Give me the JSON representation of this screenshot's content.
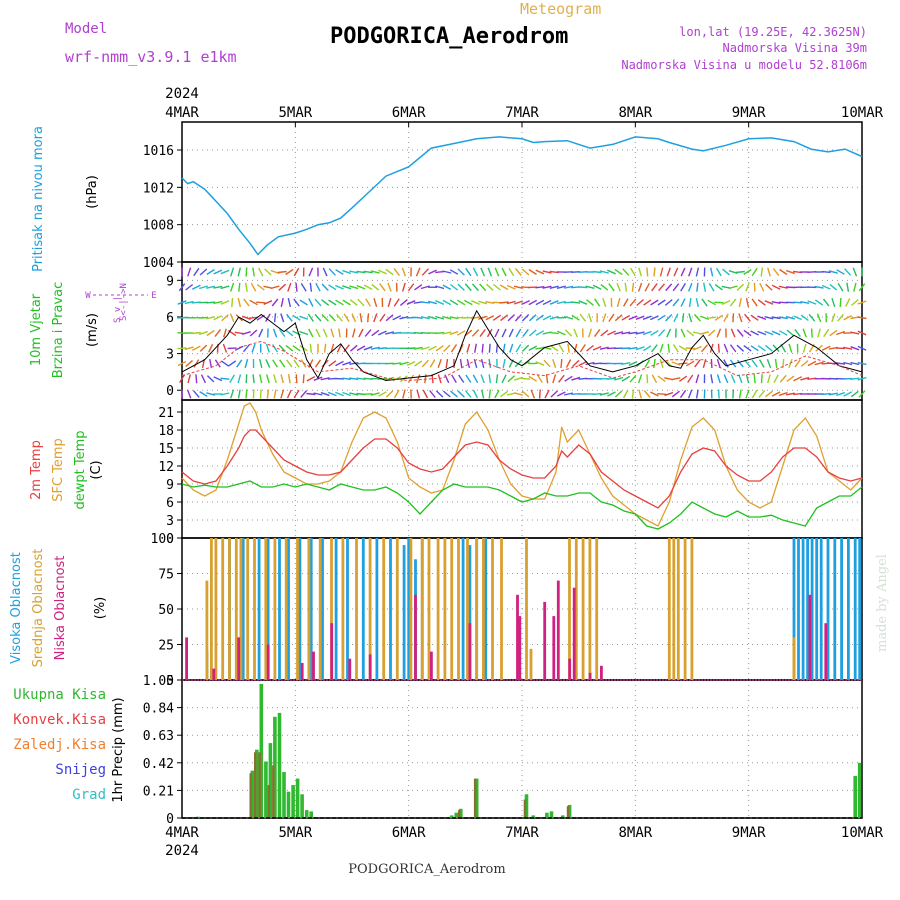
{
  "header": {
    "model_label": "Model",
    "model_name": "wrf-nmm_v3.9.1  e1km",
    "meteogram_label": "Meteogram",
    "station": "PODGORICA_Aerodrom",
    "lonlat": "lon,lat (19.25E, 42.3625N)",
    "altitude": "Nadmorska Visina 39m",
    "model_altitude": "Nadmorska Visina u modelu 52.8106m",
    "credit": "made by Angel",
    "footer_station": "PODGORICA_Aerodrom"
  },
  "colors": {
    "pressure": "#1ea0e0",
    "wind_title": "#20c020",
    "temp_2m": "#e84040",
    "temp_sfc": "#e0a030",
    "dewpoint": "#20c020",
    "cloud_high": "#1ea0e0",
    "cloud_mid": "#d8a030",
    "cloud_low": "#d02080",
    "precip_total": "#30b830",
    "precip_conv": "#e84040",
    "precip_frz": "#f08030",
    "precip_snow": "#4040e0",
    "precip_grad": "#30c0c0",
    "purple": "#b040d0"
  },
  "chart_data": [
    {
      "type": "line",
      "title": "",
      "ylabel_lines": [
        "Pritisak na nivou mora",
        "(hPa)"
      ],
      "x_year": "2024",
      "x_ticks": [
        "4MAR",
        "5MAR",
        "6MAR",
        "7MAR",
        "8MAR",
        "9MAR",
        "10MAR"
      ],
      "xlim": [
        0,
        6
      ],
      "ylim": [
        1004,
        1019
      ],
      "y_ticks": [
        1004,
        1008,
        1012,
        1016
      ],
      "series": [
        {
          "x": [
            0,
            0.05,
            0.1,
            0.2,
            0.3,
            0.4,
            0.5,
            0.6,
            0.67,
            0.75,
            0.85,
            1.0,
            1.1,
            1.2,
            1.3,
            1.4,
            1.5,
            1.65,
            1.8,
            2.0,
            2.1,
            2.2,
            2.4,
            2.6,
            2.8,
            3.0,
            3.1,
            3.2,
            3.4,
            3.6,
            3.8,
            4.0,
            4.2,
            4.3,
            4.5,
            4.6,
            4.8,
            5.0,
            5.2,
            5.4,
            5.55,
            5.7,
            5.85,
            6.0
          ],
          "values": [
            1013,
            1012.4,
            1012.6,
            1011.8,
            1010.5,
            1009.2,
            1007.5,
            1006,
            1004.8,
            1005.8,
            1006.7,
            1007.1,
            1007.5,
            1008,
            1008.2,
            1008.7,
            1009.8,
            1011.5,
            1013.2,
            1014.2,
            1015.2,
            1016.2,
            1016.7,
            1017.2,
            1017.4,
            1017.2,
            1016.8,
            1016.9,
            1017,
            1016.2,
            1016.6,
            1017.4,
            1017.2,
            1016.8,
            1016.1,
            1015.9,
            1016.5,
            1017.2,
            1017.3,
            1016.9,
            1016.1,
            1015.8,
            1016.1,
            1015.3
          ]
        }
      ]
    },
    {
      "type": "line",
      "title": "",
      "ylabel_lines": [
        "10m Vjetar",
        "Brzina i Pravac",
        "(m/s)"
      ],
      "compass_lines": [
        "N",
        "^",
        "|",
        "W <--|--> E",
        "|",
        "v",
        "S"
      ],
      "xlim": [
        0,
        6
      ],
      "ylim": [
        -0.8,
        10.5
      ],
      "y_ticks": [
        0,
        3,
        6,
        9
      ],
      "series": [
        {
          "name": "",
          "x": [
            0,
            0.2,
            0.4,
            0.5,
            0.6,
            0.7,
            0.8,
            0.9,
            1.0,
            1.1,
            1.2,
            1.3,
            1.4,
            1.5,
            1.6,
            1.8,
            2.0,
            2.2,
            2.4,
            2.5,
            2.6,
            2.7,
            2.8,
            2.9,
            3.0,
            3.2,
            3.4,
            3.5,
            3.6,
            3.8,
            4.0,
            4.2,
            4.3,
            4.4,
            4.5,
            4.6,
            4.7,
            4.8,
            5.0,
            5.2,
            5.4,
            5.5,
            5.6,
            5.8,
            6.0
          ],
          "values": [
            1.5,
            2.5,
            4.5,
            6,
            5.5,
            6.2,
            5.5,
            4.8,
            5.5,
            2.5,
            1.0,
            3.0,
            3.8,
            2.5,
            1.5,
            0.8,
            1.0,
            1.2,
            2.0,
            4.5,
            6.5,
            5.0,
            3.5,
            2.5,
            2.0,
            3.5,
            4.0,
            3.0,
            2.0,
            1.5,
            2.0,
            3.0,
            2.0,
            1.8,
            3.5,
            4.5,
            3.0,
            2.0,
            2.5,
            3.0,
            4.5,
            4.0,
            3.5,
            2.0,
            1.5
          ]
        },
        {
          "name": "",
          "x": [
            0,
            0.3,
            0.5,
            0.7,
            0.9,
            1.2,
            1.5,
            1.8,
            2.0,
            2.3,
            2.6,
            2.9,
            3.2,
            3.5,
            3.8,
            4.0,
            4.3,
            4.6,
            4.9,
            5.2,
            5.5,
            5.8,
            6.0
          ],
          "values": [
            1.2,
            2.0,
            3.5,
            4.0,
            3.2,
            1.5,
            1.8,
            1.0,
            0.8,
            1.0,
            2.5,
            1.5,
            1.2,
            2.0,
            1.0,
            1.5,
            2.5,
            2.5,
            1.2,
            1.5,
            2.8,
            2.0,
            1.2
          ]
        }
      ]
    },
    {
      "type": "line",
      "title": "",
      "ylabel_lines": [
        "2m Temp",
        "SFC Temp",
        "dewpt Temp",
        "(C)"
      ],
      "xlim": [
        0,
        6
      ],
      "ylim": [
        0,
        23
      ],
      "y_ticks": [
        0,
        3,
        6,
        9,
        12,
        15,
        18,
        21
      ],
      "series": [
        {
          "name": "2m Temp",
          "x": [
            0,
            0.1,
            0.2,
            0.3,
            0.4,
            0.5,
            0.55,
            0.6,
            0.65,
            0.7,
            0.8,
            0.9,
            1.0,
            1.1,
            1.2,
            1.3,
            1.4,
            1.5,
            1.6,
            1.7,
            1.8,
            1.9,
            2.0,
            2.1,
            2.2,
            2.3,
            2.4,
            2.5,
            2.6,
            2.7,
            2.8,
            2.9,
            3.0,
            3.1,
            3.2,
            3.3,
            3.35,
            3.4,
            3.5,
            3.6,
            3.7,
            3.8,
            3.9,
            4.0,
            4.1,
            4.2,
            4.3,
            4.4,
            4.5,
            4.6,
            4.7,
            4.8,
            4.9,
            5.0,
            5.1,
            5.2,
            5.3,
            5.4,
            5.5,
            5.6,
            5.7,
            5.8,
            5.9,
            6.0
          ],
          "values": [
            11,
            9.5,
            9,
            9.5,
            12,
            15,
            17,
            18,
            18,
            17,
            15,
            13,
            12,
            11,
            10.5,
            10.5,
            11,
            13,
            15,
            16.5,
            16.5,
            15,
            12.5,
            11.5,
            11,
            11.5,
            13.5,
            15.5,
            16,
            15.5,
            13,
            11.5,
            10.5,
            10,
            10,
            12,
            14.5,
            13.5,
            15.5,
            14,
            11,
            9.5,
            8,
            7,
            6,
            5,
            7,
            11,
            14,
            15,
            14.5,
            12,
            10.5,
            9.5,
            9.5,
            11,
            13.5,
            15,
            15,
            13.5,
            11,
            10,
            9.5,
            10
          ]
        },
        {
          "name": "SFC Temp",
          "x": [
            0,
            0.1,
            0.2,
            0.3,
            0.4,
            0.5,
            0.55,
            0.6,
            0.65,
            0.7,
            0.8,
            0.9,
            1.0,
            1.1,
            1.2,
            1.3,
            1.4,
            1.5,
            1.6,
            1.7,
            1.8,
            1.9,
            2.0,
            2.1,
            2.2,
            2.3,
            2.4,
            2.5,
            2.6,
            2.7,
            2.8,
            2.9,
            3.0,
            3.1,
            3.2,
            3.3,
            3.35,
            3.4,
            3.5,
            3.6,
            3.7,
            3.8,
            3.9,
            4.0,
            4.1,
            4.2,
            4.3,
            4.4,
            4.5,
            4.6,
            4.7,
            4.8,
            4.9,
            5.0,
            5.1,
            5.2,
            5.3,
            5.4,
            5.5,
            5.6,
            5.7,
            5.8,
            5.9,
            6.0
          ],
          "values": [
            10,
            8,
            7,
            8,
            13,
            19,
            22,
            22.5,
            21,
            18,
            14,
            11,
            10,
            9,
            9,
            9.5,
            11,
            16,
            20,
            21,
            20,
            16,
            10,
            8.5,
            7.5,
            8,
            13,
            19,
            21,
            18,
            13,
            9,
            7,
            6.5,
            6.5,
            11,
            18.5,
            16,
            18,
            14,
            10,
            7,
            5.5,
            4,
            3,
            2,
            6,
            13,
            18.5,
            20,
            18,
            12,
            8,
            6,
            5,
            6,
            12,
            18,
            20,
            17,
            11,
            9.5,
            8,
            10
          ]
        },
        {
          "name": "dewpt Temp",
          "x": [
            0,
            0.1,
            0.2,
            0.3,
            0.4,
            0.5,
            0.6,
            0.7,
            0.8,
            0.9,
            1.0,
            1.1,
            1.2,
            1.3,
            1.4,
            1.5,
            1.6,
            1.7,
            1.8,
            1.9,
            2.0,
            2.1,
            2.2,
            2.3,
            2.4,
            2.5,
            2.6,
            2.7,
            2.8,
            2.9,
            3.0,
            3.1,
            3.2,
            3.3,
            3.4,
            3.5,
            3.6,
            3.7,
            3.8,
            3.9,
            4.0,
            4.1,
            4.2,
            4.3,
            4.4,
            4.5,
            4.6,
            4.7,
            4.8,
            4.9,
            5.0,
            5.1,
            5.2,
            5.3,
            5.4,
            5.5,
            5.6,
            5.7,
            5.8,
            5.9,
            6.0
          ],
          "values": [
            9,
            8.5,
            8.8,
            8.5,
            8.5,
            9,
            9.5,
            8.5,
            8.5,
            9,
            8.5,
            9,
            8.5,
            8,
            9,
            8.5,
            8,
            8,
            8.5,
            7.5,
            6,
            4,
            6,
            8,
            9,
            8.5,
            8.5,
            8.5,
            8,
            7,
            6,
            6.5,
            7.5,
            7,
            7,
            7.5,
            7.5,
            6,
            5.5,
            4.5,
            4,
            2,
            1.5,
            2.5,
            4,
            6,
            5,
            4,
            3.5,
            4.5,
            3.5,
            3.5,
            3.8,
            3,
            2.5,
            2,
            5,
            6,
            7,
            7,
            8.5
          ]
        }
      ]
    },
    {
      "type": "bar",
      "title": "",
      "ylabel_lines": [
        "Visoka Oblacnost",
        "Srednja Oblacnost",
        "Niska Oblacnost",
        "(%)"
      ],
      "xlim": [
        0,
        6
      ],
      "ylim": [
        0,
        100
      ],
      "y_ticks": [
        0,
        25,
        50,
        75,
        100
      ],
      "series": [
        {
          "name": "Visoka Oblacnost",
          "x": [
            0.22,
            0.42,
            0.54,
            0.68,
            0.76,
            0.86,
            0.94,
            1.04,
            1.14,
            1.24,
            1.36,
            1.46,
            1.6,
            1.72,
            1.84,
            1.96,
            2.0,
            2.06,
            2.12,
            2.48,
            2.54,
            2.6,
            2.68,
            5.4,
            5.44,
            5.48,
            5.52,
            5.56,
            5.6,
            5.64,
            5.7,
            5.76,
            5.82,
            5.88,
            5.94,
            5.98
          ],
          "values": [
            20,
            100,
            100,
            100,
            100,
            100,
            100,
            100,
            100,
            100,
            100,
            100,
            100,
            100,
            100,
            95,
            100,
            85,
            100,
            100,
            95,
            100,
            100,
            100,
            100,
            100,
            100,
            100,
            100,
            100,
            100,
            100,
            100,
            100,
            100,
            100
          ]
        },
        {
          "name": "Srednja Oblacnost",
          "x": [
            0.2,
            0.24,
            0.28,
            0.34,
            0.4,
            0.46,
            0.5,
            0.56,
            0.62,
            0.72,
            0.8,
            0.9,
            1.0,
            1.1,
            1.2,
            1.3,
            1.4,
            1.52,
            1.64,
            1.76,
            1.88,
            2.0,
            2.1,
            2.16,
            2.24,
            2.3,
            2.36,
            2.42,
            2.5,
            2.58,
            2.64,
            2.72,
            2.8,
            3.02,
            3.06,
            3.4,
            3.46,
            3.52,
            3.58,
            3.64,
            4.28,
            4.32,
            4.36,
            4.42,
            4.48,
            5.38
          ],
          "values": [
            70,
            100,
            100,
            100,
            100,
            100,
            100,
            100,
            100,
            100,
            100,
            100,
            100,
            100,
            100,
            100,
            100,
            100,
            100,
            100,
            100,
            100,
            100,
            100,
            100,
            100,
            100,
            100,
            100,
            100,
            100,
            100,
            100,
            100,
            22,
            100,
            100,
            100,
            100,
            100,
            100,
            100,
            100,
            100,
            100,
            30
          ]
        },
        {
          "name": "Niska Oblacnost",
          "x": [
            0.06,
            0.3,
            0.52,
            0.78,
            1.08,
            1.18,
            1.34,
            1.5,
            1.68,
            2.08,
            2.22,
            2.56,
            2.98,
            3.0,
            3.22,
            3.3,
            3.34,
            3.44,
            3.48,
            3.62,
            3.72,
            5.56,
            5.7
          ],
          "values": [
            30,
            8,
            30,
            25,
            12,
            20,
            40,
            15,
            18,
            60,
            20,
            40,
            60,
            45,
            55,
            45,
            70,
            15,
            65,
            5,
            10,
            60,
            40
          ]
        }
      ]
    },
    {
      "type": "bar",
      "title": "",
      "ylabel_lines": [
        "1hr Precip (mm)"
      ],
      "legend": [
        "Ukupna Kisa",
        "Konvek.Kisa",
        "Zaledj.Kisa",
        "Snijeg",
        "Grad"
      ],
      "x_year": "2024",
      "x_ticks": [
        "4MAR",
        "5MAR",
        "6MAR",
        "7MAR",
        "8MAR",
        "9MAR",
        "10MAR"
      ],
      "xlim": [
        0,
        6
      ],
      "ylim": [
        0,
        1.05
      ],
      "y_ticks": [
        0,
        0.21,
        0.42,
        0.63,
        0.84,
        1.05
      ],
      "series": [
        {
          "name": "Ukupna Kisa",
          "x": [
            0.14,
            0.62,
            0.66,
            0.7,
            0.74,
            0.78,
            0.82,
            0.86,
            0.9,
            0.94,
            0.98,
            1.02,
            1.06,
            1.1,
            1.14,
            2.38,
            2.42,
            2.46,
            2.6,
            3.04,
            3.1,
            3.22,
            3.26,
            3.36,
            3.42,
            5.94,
            5.98
          ],
          "values": [
            0.01,
            0.36,
            0.52,
            1.02,
            0.43,
            0.57,
            0.77,
            0.8,
            0.35,
            0.2,
            0.25,
            0.3,
            0.18,
            0.06,
            0.05,
            0.02,
            0.04,
            0.07,
            0.3,
            0.18,
            0.02,
            0.04,
            0.05,
            0.02,
            0.1,
            0.32,
            0.42
          ]
        },
        {
          "name": "Konvek.Kisa",
          "x": [
            0.62,
            0.66,
            0.7,
            0.78,
            0.82,
            2.46,
            2.6,
            3.04,
            3.42
          ],
          "values": [
            0.34,
            0.5,
            0.5,
            0.25,
            0.4,
            0.06,
            0.3,
            0.14,
            0.09
          ]
        }
      ]
    }
  ]
}
